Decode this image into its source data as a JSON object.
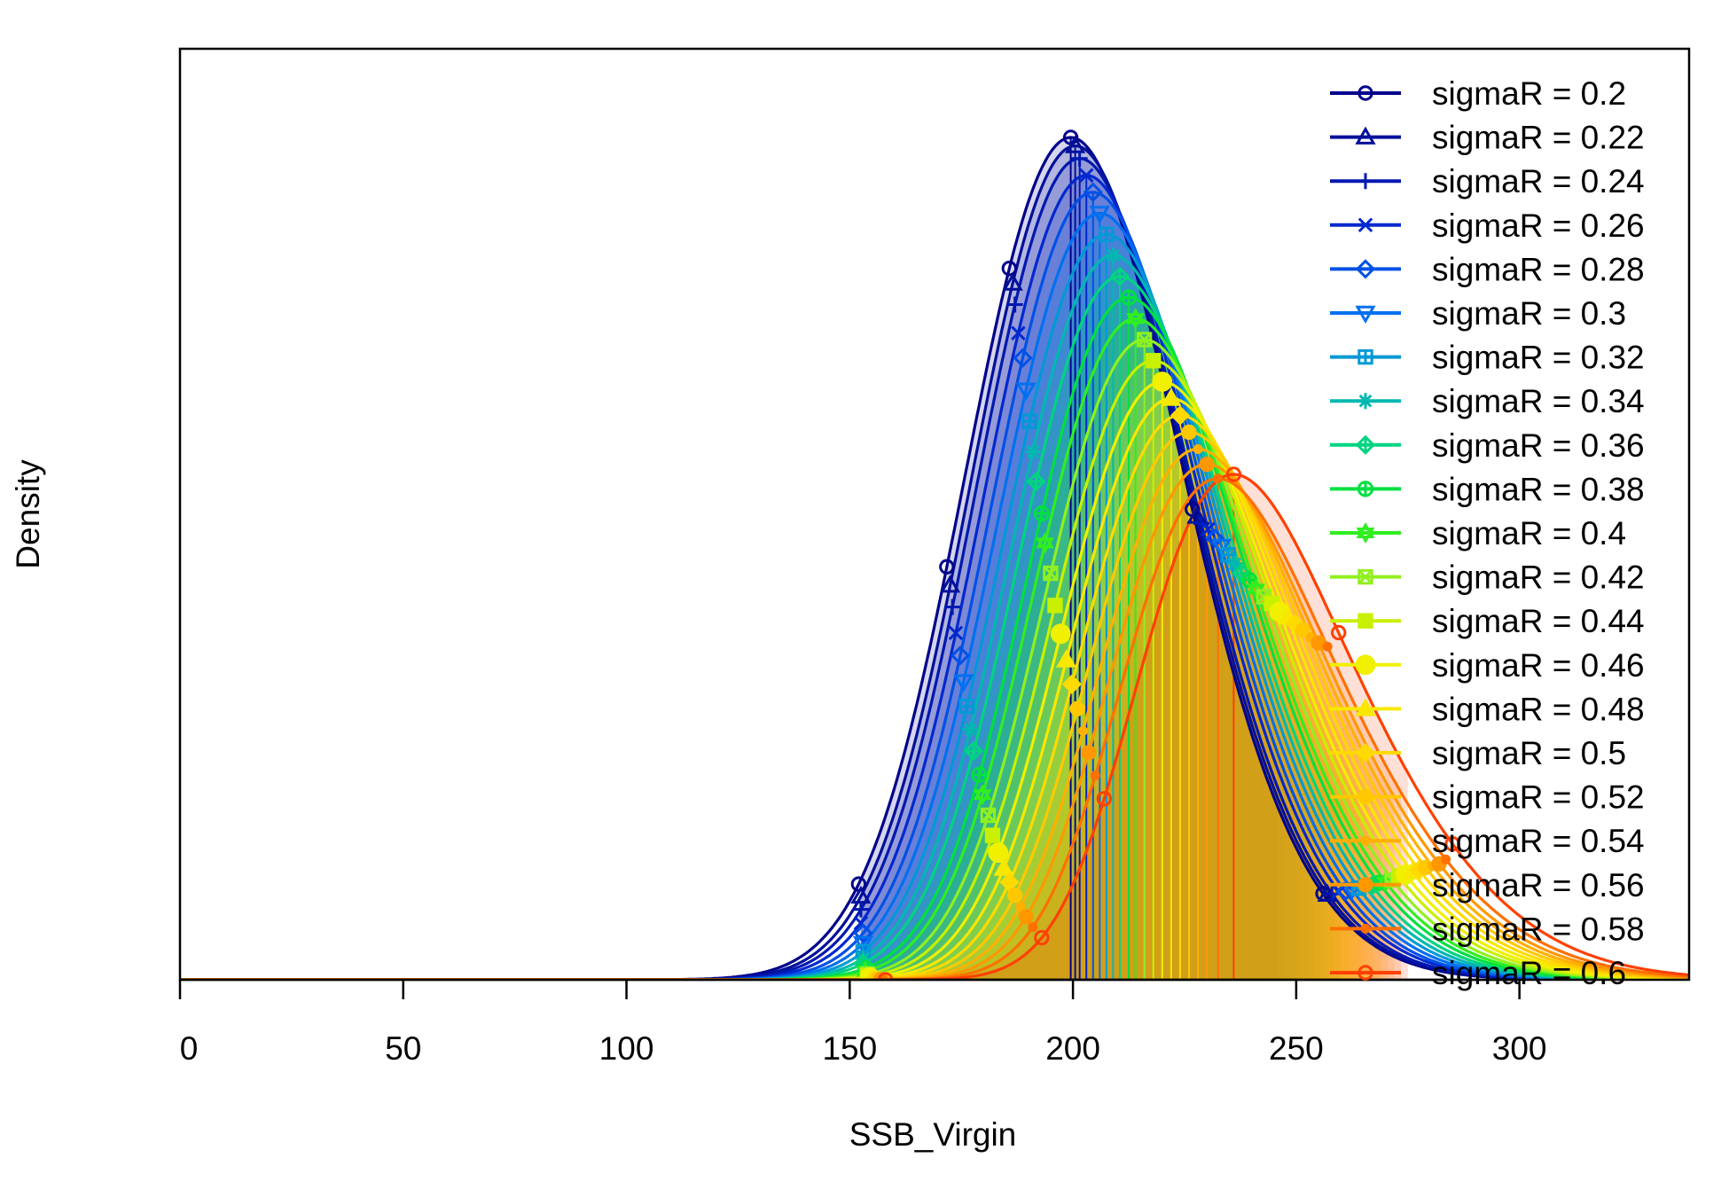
{
  "chart_data": {
    "type": "line",
    "title": "",
    "xlabel": "SSB_Virgin",
    "ylabel": "Density",
    "xlim": [
      0,
      338
    ],
    "ylim": [
      0,
      1.0
    ],
    "x_ticks": [
      0,
      50,
      100,
      150,
      200,
      250,
      300
    ],
    "x_tick_labels": [
      "0",
      "50",
      "100",
      "150",
      "200",
      "250",
      "300"
    ],
    "y_ticks_shown": false,
    "grid": false,
    "legend_position": "top-right",
    "series_shape": "skew-normal density",
    "series": [
      {
        "name": "sigmaR = 0.2",
        "mode": 199.5,
        "peak": 1.0,
        "lower95": 152.0,
        "upper95": 246.0,
        "color": "#00008B",
        "marker": "circle"
      },
      {
        "name": "sigmaR = 0.22",
        "mode": 200.5,
        "peak": 0.99,
        "lower95": 152.5,
        "upper95": 247.0,
        "color": "#00109A",
        "marker": "triangle-up"
      },
      {
        "name": "sigmaR = 0.24",
        "mode": 201.5,
        "peak": 0.975,
        "lower95": 152.5,
        "upper95": 248.0,
        "color": "#0018B0",
        "marker": "plus"
      },
      {
        "name": "sigmaR = 0.26",
        "mode": 203.0,
        "peak": 0.955,
        "lower95": 152.5,
        "upper95": 249.5,
        "color": "#0028D0",
        "marker": "cross"
      },
      {
        "name": "sigmaR = 0.28",
        "mode": 204.5,
        "peak": 0.935,
        "lower95": 153.0,
        "upper95": 251.0,
        "color": "#0050E6",
        "marker": "diamond"
      },
      {
        "name": "sigmaR = 0.3",
        "mode": 206.0,
        "peak": 0.91,
        "lower95": 153.0,
        "upper95": 252.5,
        "color": "#0070F0",
        "marker": "triangle-down"
      },
      {
        "name": "sigmaR = 0.32",
        "mode": 207.5,
        "peak": 0.885,
        "lower95": 153.0,
        "upper95": 254.0,
        "color": "#0099D6",
        "marker": "square-plus"
      },
      {
        "name": "sigmaR = 0.34",
        "mode": 209.0,
        "peak": 0.86,
        "lower95": 153.0,
        "upper95": 255.5,
        "color": "#00B8B0",
        "marker": "asterisk"
      },
      {
        "name": "sigmaR = 0.36",
        "mode": 210.5,
        "peak": 0.835,
        "lower95": 153.0,
        "upper95": 257.0,
        "color": "#00D480",
        "marker": "diamond-plus"
      },
      {
        "name": "sigmaR = 0.38",
        "mode": 212.5,
        "peak": 0.81,
        "lower95": 153.5,
        "upper95": 258.5,
        "color": "#00E040",
        "marker": "circle-plus"
      },
      {
        "name": "sigmaR = 0.4",
        "mode": 214.0,
        "peak": 0.785,
        "lower95": 153.5,
        "upper95": 260.0,
        "color": "#30EE20",
        "marker": "star-of-david"
      },
      {
        "name": "sigmaR = 0.42",
        "mode": 216.0,
        "peak": 0.76,
        "lower95": 154.0,
        "upper95": 261.5,
        "color": "#90F020",
        "marker": "square-cross"
      },
      {
        "name": "sigmaR = 0.44",
        "mode": 218.0,
        "peak": 0.735,
        "lower95": 154.0,
        "upper95": 263.0,
        "color": "#C8F000",
        "marker": "filled-square"
      },
      {
        "name": "sigmaR = 0.46",
        "mode": 220.0,
        "peak": 0.71,
        "lower95": 154.5,
        "upper95": 264.5,
        "color": "#F0F000",
        "marker": "filled-circle-large"
      },
      {
        "name": "sigmaR = 0.48",
        "mode": 222.0,
        "peak": 0.69,
        "lower95": 155.0,
        "upper95": 266.0,
        "color": "#F8E800",
        "marker": "filled-triangle"
      },
      {
        "name": "sigmaR = 0.5",
        "mode": 224.0,
        "peak": 0.67,
        "lower95": 155.5,
        "upper95": 267.5,
        "color": "#FFDA00",
        "marker": "filled-diamond"
      },
      {
        "name": "sigmaR = 0.52",
        "mode": 226.0,
        "peak": 0.65,
        "lower95": 156.0,
        "upper95": 269.0,
        "color": "#FFC800",
        "marker": "filled-circle"
      },
      {
        "name": "sigmaR = 0.54",
        "mode": 228.0,
        "peak": 0.63,
        "lower95": 156.5,
        "upper95": 270.5,
        "color": "#FFB000",
        "marker": "bullet"
      },
      {
        "name": "sigmaR = 0.56",
        "mode": 230.0,
        "peak": 0.612,
        "lower95": 157.0,
        "upper95": 272.0,
        "color": "#FF9800",
        "marker": "filled-circle"
      },
      {
        "name": "sigmaR = 0.58",
        "mode": 232.5,
        "peak": 0.595,
        "lower95": 157.5,
        "upper95": 273.5,
        "color": "#FF7000",
        "marker": "bullet"
      },
      {
        "name": "sigmaR = 0.6",
        "mode": 236.0,
        "peak": 0.6,
        "lower95": 158.0,
        "upper95": 275.0,
        "color": "#FF4000",
        "marker": "circle"
      }
    ]
  }
}
